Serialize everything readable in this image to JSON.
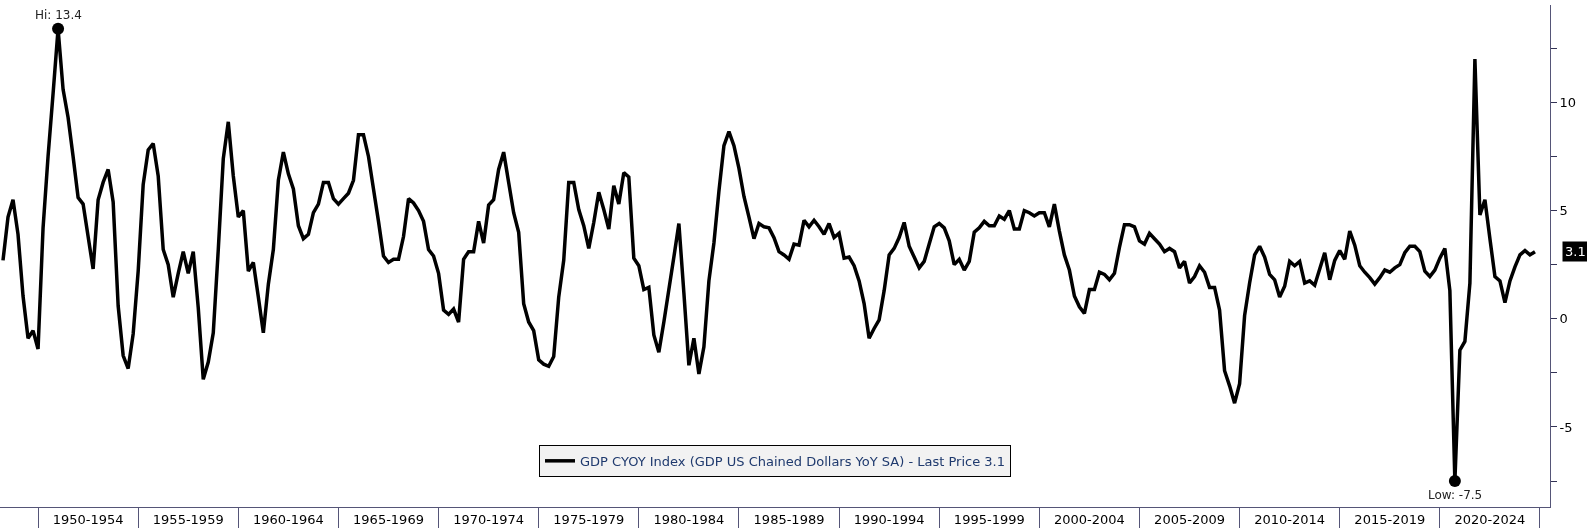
{
  "chart_data": {
    "type": "line",
    "categories": [
      null,
      null,
      null,
      null,
      null,
      null,
      null,
      null,
      null,
      null,
      null,
      null,
      null,
      null,
      null,
      null,
      null,
      "1950-1954",
      null,
      null,
      null,
      null,
      null,
      null,
      null,
      null,
      null,
      null,
      null,
      null,
      null,
      null,
      null,
      null,
      null,
      null,
      null,
      "1955-1959",
      null,
      null,
      null,
      null,
      null,
      null,
      null,
      null,
      null,
      null,
      null,
      null,
      null,
      null,
      null,
      null,
      null,
      null,
      null,
      "1960-1964",
      null,
      null,
      null,
      null,
      null,
      null,
      null,
      null,
      null,
      null,
      null,
      null,
      null,
      null,
      null,
      null,
      null,
      null,
      null,
      "1965-1969",
      null,
      null,
      null,
      null,
      null,
      null,
      null,
      null,
      null,
      null,
      null,
      null,
      null,
      null,
      null,
      null,
      null,
      null,
      null,
      "1970-1974",
      null,
      null,
      null,
      null,
      null,
      null,
      null,
      null,
      null,
      null,
      null,
      null,
      null,
      null,
      null,
      null,
      null,
      null,
      null,
      "1975-1979",
      null,
      null,
      null,
      null,
      null,
      null,
      null,
      null,
      null,
      null,
      null,
      null,
      null,
      null,
      null,
      null,
      null,
      null,
      null,
      "1980-1984",
      null,
      null,
      null,
      null,
      null,
      null,
      null,
      null,
      null,
      null,
      null,
      null,
      null,
      null,
      null,
      null,
      null,
      null,
      null,
      "1985-1989",
      null,
      null,
      null,
      null,
      null,
      null,
      null,
      null,
      null,
      null,
      null,
      null,
      null,
      null,
      null,
      null,
      null,
      null,
      null,
      "1990-1994",
      null,
      null,
      null,
      null,
      null,
      null,
      null,
      null,
      null,
      null,
      null,
      null,
      null,
      null,
      null,
      null,
      null,
      null,
      null,
      "1995-1999",
      null,
      null,
      null,
      null,
      null,
      null,
      null,
      null,
      null,
      null,
      null,
      null,
      null,
      null,
      null,
      null,
      null,
      null,
      null,
      "2000-2004",
      null,
      null,
      null,
      null,
      null,
      null,
      null,
      null,
      null,
      null,
      null,
      null,
      null,
      null,
      null,
      null,
      null,
      null,
      null,
      "2005-2009",
      null,
      null,
      null,
      null,
      null,
      null,
      null,
      null,
      null,
      null,
      null,
      null,
      null,
      null,
      null,
      null,
      null,
      null,
      null,
      "2010-2014",
      null,
      null,
      null,
      null,
      null,
      null,
      null,
      null,
      null,
      null,
      null,
      null,
      null,
      null,
      null,
      null,
      null,
      null,
      null,
      "2015-2019",
      null,
      null,
      null,
      null,
      null,
      null,
      null,
      null,
      null,
      null,
      null,
      null,
      null,
      null,
      null,
      null,
      null,
      null,
      null,
      "2020-2024",
      null,
      null,
      null,
      null,
      null,
      null,
      null,
      null,
      null
    ],
    "series": [
      {
        "name": "GDP CYOY Index (GDP US Chained Dollars YoY SA) - Last Price 3.1",
        "color": "#000000",
        "values": [
          2.7,
          4.7,
          5.5,
          3.9,
          1.05,
          -0.9,
          -0.55,
          -1.4,
          4.2,
          7.5,
          10.4,
          13.4,
          10.6,
          9.3,
          7.5,
          5.6,
          5.3,
          3.8,
          2.3,
          5.5,
          6.3,
          6.9,
          5.4,
          0.6,
          -1.7,
          -2.3,
          -0.7,
          2.2,
          6.2,
          7.8,
          8.1,
          6.6,
          3.2,
          2.5,
          1.0,
          2.1,
          3.1,
          2.1,
          3.1,
          0.5,
          -2.8,
          -2.0,
          -0.65,
          3.2,
          7.4,
          9.1,
          6.6,
          4.7,
          5.0,
          2.2,
          2.6,
          1.0,
          -0.65,
          1.6,
          3.2,
          6.4,
          7.7,
          6.7,
          6.0,
          4.3,
          3.7,
          3.9,
          4.9,
          5.3,
          6.3,
          6.3,
          5.55,
          5.3,
          5.55,
          5.8,
          6.4,
          8.5,
          8.5,
          7.5,
          6.0,
          4.5,
          2.9,
          2.6,
          2.75,
          2.75,
          3.8,
          5.55,
          5.35,
          5.0,
          4.5,
          3.2,
          2.9,
          2.1,
          0.4,
          0.2,
          0.45,
          -0.15,
          2.75,
          3.1,
          3.1,
          4.5,
          3.5,
          5.25,
          5.5,
          6.9,
          7.7,
          6.3,
          4.9,
          4.0,
          0.7,
          -0.15,
          -0.55,
          -1.9,
          -2.1,
          -2.2,
          -1.75,
          1.0,
          2.7,
          6.3,
          6.3,
          5.05,
          4.3,
          3.25,
          4.45,
          5.85,
          5.05,
          4.15,
          6.15,
          5.3,
          6.75,
          6.55,
          2.8,
          2.45,
          1.35,
          1.45,
          -0.75,
          -1.55,
          -0.15,
          1.35,
          2.85,
          4.4,
          1.2,
          -2.15,
          -0.9,
          -2.55,
          -1.3,
          1.75,
          3.5,
          5.9,
          8.0,
          8.65,
          8.0,
          6.95,
          5.65,
          4.7,
          3.7,
          4.4,
          4.25,
          4.2,
          3.75,
          3.1,
          2.95,
          2.75,
          3.45,
          3.4,
          4.55,
          4.25,
          4.55,
          4.25,
          3.9,
          4.4,
          3.75,
          3.95,
          2.8,
          2.85,
          2.45,
          1.75,
          0.7,
          -0.9,
          -0.45,
          -0.05,
          1.3,
          2.95,
          3.25,
          3.75,
          4.45,
          3.35,
          2.85,
          2.35,
          2.65,
          3.45,
          4.25,
          4.4,
          4.2,
          3.6,
          2.5,
          2.75,
          2.25,
          2.65,
          4.0,
          4.2,
          4.5,
          4.3,
          4.3,
          4.75,
          4.6,
          5.0,
          4.15,
          4.15,
          5.0,
          4.9,
          4.75,
          4.9,
          4.9,
          4.25,
          5.3,
          4.05,
          2.95,
          2.25,
          1.05,
          0.55,
          0.25,
          1.35,
          1.35,
          2.15,
          2.05,
          1.8,
          2.1,
          3.3,
          4.35,
          4.35,
          4.25,
          3.6,
          3.45,
          3.95,
          3.7,
          3.45,
          3.1,
          3.25,
          3.1,
          2.35,
          2.65,
          1.65,
          1.95,
          2.45,
          2.15,
          1.45,
          1.45,
          0.4,
          -2.4,
          -3.1,
          -3.9,
          -3.0,
          0.15,
          1.65,
          2.95,
          3.35,
          2.85,
          2.05,
          1.8,
          1.0,
          1.5,
          2.65,
          2.45,
          2.65,
          1.65,
          1.75,
          1.55,
          2.3,
          3.05,
          1.8,
          2.7,
          3.15,
          2.75,
          4.05,
          3.4,
          2.45,
          2.15,
          1.9,
          1.6,
          1.9,
          2.25,
          2.15,
          2.35,
          2.5,
          3.05,
          3.35,
          3.35,
          3.1,
          2.2,
          1.95,
          2.25,
          2.8,
          3.25,
          1.3,
          -7.5,
          -1.45,
          -1.05,
          1.65,
          12.0,
          4.8,
          5.5,
          3.7,
          1.95,
          1.75,
          0.75,
          1.75,
          2.4,
          2.95,
          3.15,
          2.95,
          3.1
        ]
      }
    ],
    "ylim": [
      -8.7,
      14.5
    ],
    "yticks": [
      -5,
      0,
      5,
      10
    ],
    "annotations": [
      {
        "text": "Hi: 13.4",
        "y": 13.4
      },
      {
        "text": "Low: -7.5",
        "y": -7.5
      },
      "3.1"
    ],
    "grid": false,
    "legend": "bottom",
    "marker": "none",
    "line_style": "solid"
  }
}
